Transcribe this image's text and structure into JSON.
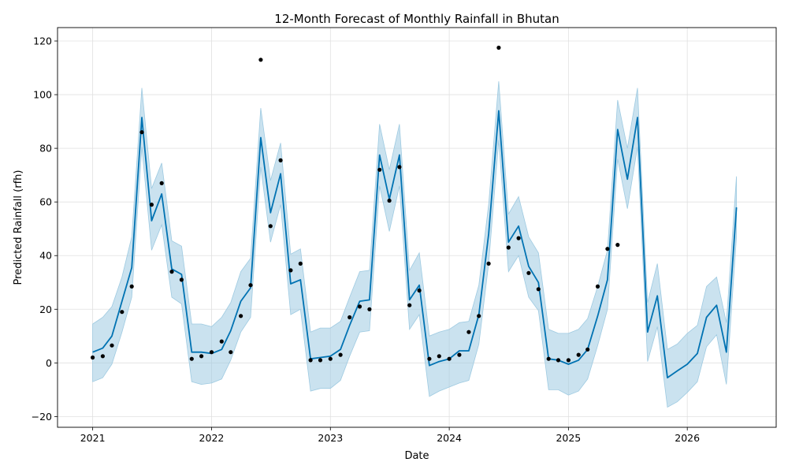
{
  "chart_data": {
    "type": "line",
    "title": "12-Month Forecast of Monthly Rainfall in Bhutan",
    "xlabel": "Date",
    "ylabel": "Predicted Rainfall (rfh)",
    "xlim": [
      "2020-09-15",
      "2026-10-01"
    ],
    "ylim": [
      -24,
      125
    ],
    "grid": true,
    "x_ticks": [
      "2021",
      "2022",
      "2023",
      "2024",
      "2025",
      "2026"
    ],
    "y_ticks": [
      -20,
      0,
      20,
      40,
      60,
      80,
      100,
      120
    ],
    "colors": {
      "forecast_line": "#0072B2",
      "interval_fill": "#9ecae1",
      "observed_points": "#000000",
      "grid": "#e0e0e0"
    },
    "series": [
      {
        "role": "forecast",
        "style": "line",
        "x": [
          "2021-01",
          "2021-02",
          "2021-03",
          "2021-04",
          "2021-05",
          "2021-06",
          "2021-07",
          "2021-08",
          "2021-09",
          "2021-10",
          "2021-11",
          "2021-12",
          "2022-01",
          "2022-02",
          "2022-03",
          "2022-04",
          "2022-05",
          "2022-06",
          "2022-07",
          "2022-08",
          "2022-09",
          "2022-10",
          "2022-11",
          "2022-12",
          "2023-01",
          "2023-02",
          "2023-03",
          "2023-04",
          "2023-05",
          "2023-06",
          "2023-07",
          "2023-08",
          "2023-09",
          "2023-10",
          "2023-11",
          "2023-12",
          "2024-01",
          "2024-02",
          "2024-03",
          "2024-04",
          "2024-05",
          "2024-06",
          "2024-07",
          "2024-08",
          "2024-09",
          "2024-10",
          "2024-11",
          "2024-12",
          "2025-01",
          "2025-02",
          "2025-03",
          "2025-04",
          "2025-05",
          "2025-06",
          "2025-07",
          "2025-08",
          "2025-09",
          "2025-10",
          "2025-11",
          "2025-12",
          "2026-01",
          "2026-02",
          "2026-03",
          "2026-04",
          "2026-05",
          "2026-06"
        ],
        "y": [
          4,
          5.5,
          10,
          23,
          35.5,
          91.5,
          53,
          63,
          35,
          33,
          4,
          4,
          3.5,
          5,
          12,
          23,
          28,
          84,
          56,
          70.5,
          29.5,
          31,
          1.5,
          2,
          2.5,
          5,
          14,
          23,
          23.5,
          77.5,
          61,
          77.5,
          23.5,
          29,
          -1,
          0.5,
          1.5,
          4.5,
          4.5,
          18,
          48,
          94,
          45,
          51,
          36,
          30,
          1.5,
          1,
          -0.5,
          1,
          5,
          17.5,
          31,
          87,
          68.5,
          91.5,
          11.5,
          25,
          -5.5,
          -3,
          -0.5,
          3.5,
          17,
          21.5,
          4,
          58
        ]
      },
      {
        "role": "interval_upper",
        "style": "band",
        "y": [
          14.5,
          17,
          21,
          32,
          47,
          102.5,
          65,
          74.5,
          45.5,
          43.5,
          14.5,
          14.5,
          13.5,
          17,
          22.5,
          34,
          39,
          95,
          68,
          82,
          40.5,
          42.5,
          11.5,
          13,
          13,
          15.5,
          24.5,
          34,
          34.5,
          89,
          72,
          89,
          34.5,
          41,
          10,
          11.5,
          12.5,
          15,
          15.5,
          29,
          59,
          105,
          55.5,
          62,
          47,
          41,
          12.5,
          11,
          11,
          12.5,
          16.5,
          28.5,
          42,
          98,
          80,
          102.5,
          22.5,
          37,
          5,
          7,
          11,
          14,
          28.5,
          32,
          15,
          69.5
        ]
      },
      {
        "role": "interval_lower",
        "style": "band",
        "y": [
          -7,
          -5.5,
          -0.5,
          11.5,
          24.5,
          80.5,
          42,
          51.5,
          24.5,
          22,
          -7,
          -8,
          -7.5,
          -6,
          1,
          11.5,
          17,
          73,
          45,
          59,
          18,
          20,
          -10.5,
          -9.5,
          -9.5,
          -6.5,
          2.5,
          11.5,
          12,
          66,
          49,
          66,
          12.5,
          18,
          -12.5,
          -10.5,
          -9,
          -7.5,
          -6.5,
          7,
          37,
          83,
          34,
          40,
          24.5,
          19.5,
          -10,
          -10,
          -12,
          -10.5,
          -6,
          6.5,
          20,
          76,
          57.5,
          80.5,
          0.5,
          13.5,
          -16.5,
          -14.5,
          -11,
          -7,
          6,
          10.5,
          -8,
          47
        ]
      },
      {
        "role": "observed",
        "style": "scatter",
        "x": [
          "2021-01",
          "2021-02",
          "2021-03",
          "2021-04",
          "2021-05",
          "2021-06",
          "2021-07",
          "2021-08",
          "2021-09",
          "2021-10",
          "2021-11",
          "2021-12",
          "2022-01",
          "2022-02",
          "2022-03",
          "2022-04",
          "2022-05",
          "2022-06",
          "2022-07",
          "2022-08",
          "2022-09",
          "2022-10",
          "2022-11",
          "2022-12",
          "2023-01",
          "2023-02",
          "2023-03",
          "2023-04",
          "2023-05",
          "2023-06",
          "2023-07",
          "2023-08",
          "2023-09",
          "2023-10",
          "2023-11",
          "2023-12",
          "2024-01",
          "2024-02",
          "2024-03",
          "2024-04",
          "2024-05",
          "2024-06",
          "2024-07",
          "2024-08",
          "2024-09",
          "2024-10",
          "2024-11",
          "2024-12",
          "2025-01",
          "2025-02",
          "2025-03",
          "2025-04",
          "2025-05",
          "2025-06"
        ],
        "y": [
          2,
          2.5,
          6.5,
          19,
          28.5,
          86,
          59,
          67,
          34,
          31,
          1.5,
          2.5,
          4,
          8,
          4,
          17.5,
          29,
          113,
          51,
          75.5,
          34.5,
          37,
          1,
          1,
          1.5,
          3,
          17,
          21,
          20,
          72,
          60.5,
          73,
          21.5,
          27,
          1.5,
          2.5,
          1.5,
          3,
          11.5,
          17.5,
          37,
          117.5,
          43,
          46.5,
          33.5,
          27.5,
          1.5,
          1,
          1,
          3,
          5,
          28.5,
          42.5,
          44
        ]
      }
    ]
  }
}
